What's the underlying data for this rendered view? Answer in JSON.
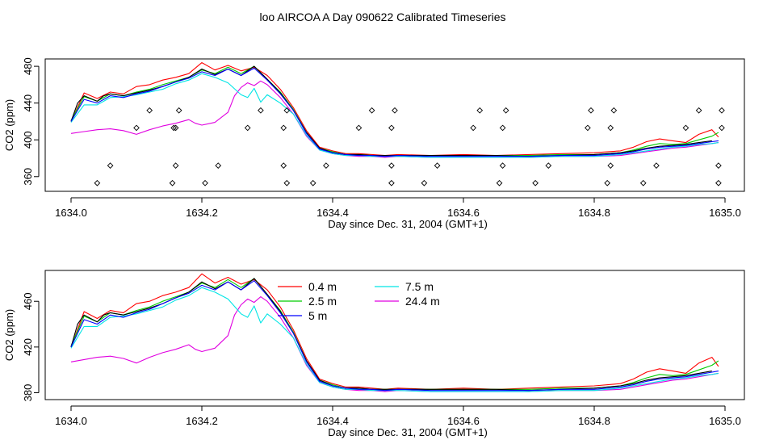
{
  "title": "loo AIRCOA A  Day 090622  Calibrated Timeseries",
  "colors": {
    "0.4 m": "#ff0000",
    "2.5 m": "#00cc00",
    "5 m": "#0000ff",
    "7.5 m": "#00e5e5",
    "24.4 m": "#e000e0",
    "black": "#000000"
  },
  "chart_data": [
    {
      "type": "line",
      "xlabel": "Day since Dec. 31, 2004 (GMT+1)",
      "ylabel": "CO2 (ppm)",
      "xlim": [
        1634.0,
        1635.0
      ],
      "ylim": [
        344,
        488
      ],
      "x_ticks": [
        "1634.0",
        "1634.2",
        "1634.4",
        "1634.6",
        "1634.8",
        "1635.0"
      ],
      "y_ticks": [
        "360",
        "400",
        "440",
        "480"
      ],
      "series": [
        {
          "name": "0.4 m",
          "x": [
            1634.0,
            1634.02,
            1634.04,
            1634.06,
            1634.08,
            1634.1,
            1634.12,
            1634.14,
            1634.16,
            1634.18,
            1634.2,
            1634.22,
            1634.24,
            1634.26,
            1634.28,
            1634.3,
            1634.32,
            1634.34,
            1634.36,
            1634.38,
            1634.4,
            1634.42,
            1634.44,
            1634.46,
            1634.48,
            1634.5,
            1634.55,
            1634.6,
            1634.65,
            1634.7,
            1634.75,
            1634.8,
            1634.84,
            1634.86,
            1634.88,
            1634.9,
            1634.92,
            1634.94,
            1634.96,
            1634.98,
            1634.99
          ],
          "y": [
            420,
            451,
            445,
            452,
            450,
            458,
            460,
            465,
            468,
            472,
            484,
            476,
            481,
            475,
            479,
            470,
            455,
            435,
            410,
            392,
            388,
            385,
            385,
            384,
            383,
            384,
            383,
            384,
            383,
            384,
            385,
            386,
            388,
            392,
            398,
            401,
            399,
            397,
            406,
            411,
            403
          ]
        },
        {
          "name": "2.5 m",
          "x": [
            1634.0,
            1634.02,
            1634.04,
            1634.06,
            1634.08,
            1634.1,
            1634.12,
            1634.14,
            1634.16,
            1634.18,
            1634.2,
            1634.22,
            1634.24,
            1634.26,
            1634.28,
            1634.3,
            1634.32,
            1634.34,
            1634.36,
            1634.38,
            1634.4,
            1634.42,
            1634.44,
            1634.46,
            1634.48,
            1634.5,
            1634.55,
            1634.6,
            1634.65,
            1634.7,
            1634.75,
            1634.8,
            1634.84,
            1634.86,
            1634.88,
            1634.9,
            1634.92,
            1634.94,
            1634.96,
            1634.98,
            1634.99
          ],
          "y": [
            421,
            447,
            442,
            450,
            448,
            452,
            455,
            460,
            464,
            468,
            476,
            472,
            479,
            472,
            480,
            466,
            452,
            433,
            408,
            391,
            387,
            384,
            384,
            383,
            383,
            383,
            383,
            383,
            383,
            383,
            384,
            384,
            386,
            389,
            393,
            396,
            395,
            396,
            400,
            404,
            408
          ]
        },
        {
          "name": "5 m",
          "x": [
            1634.0,
            1634.02,
            1634.04,
            1634.06,
            1634.08,
            1634.1,
            1634.12,
            1634.14,
            1634.16,
            1634.18,
            1634.2,
            1634.22,
            1634.24,
            1634.26,
            1634.28,
            1634.3,
            1634.32,
            1634.34,
            1634.36,
            1634.38,
            1634.4,
            1634.42,
            1634.44,
            1634.46,
            1634.48,
            1634.5,
            1634.55,
            1634.6,
            1634.65,
            1634.7,
            1634.75,
            1634.8,
            1634.84,
            1634.86,
            1634.88,
            1634.9,
            1634.92,
            1634.94,
            1634.96,
            1634.98,
            1634.99
          ],
          "y": [
            420,
            444,
            440,
            448,
            446,
            450,
            453,
            458,
            463,
            467,
            474,
            470,
            477,
            470,
            478,
            465,
            450,
            432,
            407,
            390,
            386,
            384,
            383,
            383,
            382,
            383,
            382,
            382,
            382,
            382,
            383,
            383,
            385,
            387,
            390,
            392,
            393,
            394,
            396,
            398,
            399
          ]
        },
        {
          "name": "7.5 m",
          "x": [
            1634.0,
            1634.02,
            1634.04,
            1634.06,
            1634.08,
            1634.1,
            1634.12,
            1634.14,
            1634.16,
            1634.18,
            1634.2,
            1634.22,
            1634.24,
            1634.26,
            1634.27,
            1634.28,
            1634.29,
            1634.3,
            1634.32,
            1634.34,
            1634.36,
            1634.38,
            1634.4,
            1634.42,
            1634.44,
            1634.46,
            1634.48,
            1634.5,
            1634.55,
            1634.6,
            1634.65,
            1634.7,
            1634.75,
            1634.8,
            1634.84,
            1634.86,
            1634.88,
            1634.9,
            1634.92,
            1634.94,
            1634.96,
            1634.98,
            1634.99
          ],
          "y": [
            419,
            438,
            438,
            446,
            447,
            449,
            452,
            455,
            461,
            465,
            472,
            468,
            462,
            449,
            446,
            456,
            441,
            449,
            440,
            428,
            405,
            389,
            385,
            383,
            383,
            382,
            382,
            382,
            381,
            381,
            381,
            381,
            382,
            382,
            384,
            386,
            388,
            390,
            392,
            393,
            395,
            396,
            397
          ]
        },
        {
          "name": "24.4 m",
          "x": [
            1634.0,
            1634.02,
            1634.04,
            1634.06,
            1634.08,
            1634.1,
            1634.12,
            1634.14,
            1634.16,
            1634.18,
            1634.19,
            1634.2,
            1634.22,
            1634.24,
            1634.25,
            1634.26,
            1634.27,
            1634.28,
            1634.29,
            1634.3,
            1634.32,
            1634.34,
            1634.36,
            1634.38,
            1634.4,
            1634.42,
            1634.44,
            1634.46,
            1634.48,
            1634.5,
            1634.55,
            1634.6,
            1634.65,
            1634.7,
            1634.75,
            1634.8,
            1634.84,
            1634.86,
            1634.88,
            1634.9,
            1634.92,
            1634.94,
            1634.96,
            1634.98,
            1634.99
          ],
          "y": [
            407,
            409,
            411,
            412,
            410,
            406,
            411,
            415,
            418,
            422,
            418,
            416,
            419,
            430,
            448,
            457,
            462,
            459,
            464,
            460,
            446,
            428,
            404,
            389,
            385,
            383,
            382,
            382,
            381,
            382,
            381,
            381,
            381,
            381,
            382,
            382,
            383,
            385,
            387,
            389,
            391,
            392,
            394,
            396,
            397
          ]
        },
        {
          "name": "",
          "color": "black",
          "x": [
            1634.0,
            1634.01,
            1634.02,
            1634.03,
            1634.04,
            1634.05,
            1634.06,
            1634.08,
            1634.1,
            1634.12,
            1634.14,
            1634.16,
            1634.18,
            1634.2,
            1634.22,
            1634.24,
            1634.26,
            1634.28,
            1634.3,
            1634.32,
            1634.34,
            1634.36,
            1634.38,
            1634.4,
            1634.42,
            1634.44,
            1634.46,
            1634.48,
            1634.5,
            1634.55,
            1634.6,
            1634.65,
            1634.7,
            1634.75,
            1634.8,
            1634.84,
            1634.86,
            1634.88,
            1634.9,
            1634.92,
            1634.94,
            1634.96,
            1634.98
          ],
          "y": [
            420,
            440,
            448,
            445,
            442,
            448,
            450,
            448,
            451,
            454,
            458,
            463,
            468,
            477,
            471,
            477,
            470,
            480,
            466,
            451,
            432,
            408,
            391,
            386,
            384,
            384,
            383,
            383,
            383,
            383,
            383,
            383,
            382,
            383,
            384,
            386,
            388,
            391,
            393,
            394,
            395,
            397,
            399
          ]
        }
      ],
      "scatter": {
        "marker": "diamond",
        "x": [
          1634.04,
          1634.06,
          1634.1,
          1634.12,
          1634.155,
          1634.157,
          1634.16,
          1634.16,
          1634.165,
          1634.205,
          1634.225,
          1634.27,
          1634.29,
          1634.325,
          1634.325,
          1634.33,
          1634.33,
          1634.37,
          1634.39,
          1634.44,
          1634.46,
          1634.49,
          1634.49,
          1634.49,
          1634.495,
          1634.54,
          1634.56,
          1634.615,
          1634.625,
          1634.655,
          1634.66,
          1634.66,
          1634.665,
          1634.71,
          1634.73,
          1634.79,
          1634.795,
          1634.82,
          1634.825,
          1634.825,
          1634.83,
          1634.875,
          1634.895,
          1634.94,
          1634.96,
          1634.99,
          1634.99,
          1634.995,
          1634.995
        ],
        "y": [
          353,
          372,
          413,
          432,
          353,
          413,
          372,
          413,
          432,
          353,
          372,
          413,
          432,
          372,
          413,
          353,
          432,
          353,
          372,
          413,
          432,
          353,
          372,
          413,
          432,
          353,
          372,
          413,
          432,
          353,
          372,
          413,
          432,
          353,
          372,
          413,
          432,
          353,
          372,
          413,
          432,
          353,
          372,
          413,
          432,
          353,
          372,
          413,
          432
        ]
      }
    },
    {
      "type": "line",
      "xlabel": "Day since Dec. 31, 2004 (GMT+1)",
      "ylabel": "CO2 (ppm)",
      "xlim": [
        1634.0,
        1635.0
      ],
      "ylim": [
        374,
        487
      ],
      "x_ticks": [
        "1634.0",
        "1634.2",
        "1634.4",
        "1634.6",
        "1634.8",
        "1635.0"
      ],
      "y_ticks": [
        "380",
        "420",
        "460"
      ],
      "legend": {
        "position": "top-center",
        "entries": [
          "0.4 m",
          "2.5 m",
          "5 m",
          "7.5 m",
          "24.4 m"
        ]
      },
      "series_ref": "same series values as the first panel"
    }
  ]
}
